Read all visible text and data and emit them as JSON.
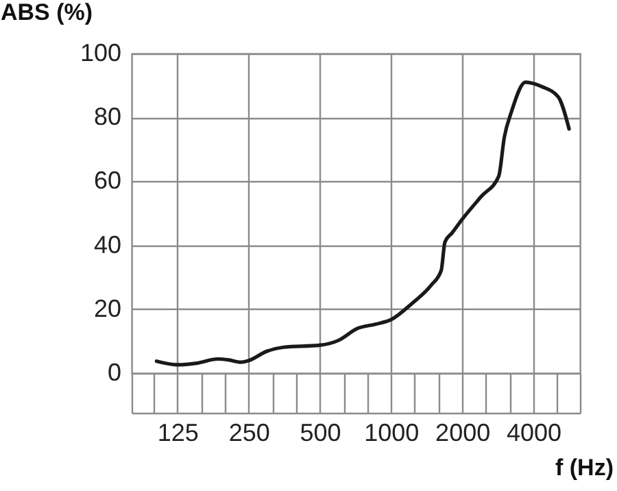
{
  "chart_data": {
    "type": "line",
    "xlabel": "f (Hz)",
    "ylabel": "ABS (%)",
    "log": "x",
    "grid": true,
    "marker": "none",
    "line_style": "solid",
    "series": [
      {
        "color": "#1a1a1a",
        "x": [
          102,
          125,
          151,
          185,
          206,
          232,
          250,
          296,
          353,
          500,
          603,
          719,
          862,
          1000,
          1232,
          1475,
          1631,
          1691,
          1815,
          2000,
          2412,
          2855,
          3017,
          3230,
          3707,
          4350,
          5100,
          5665
        ],
        "values": [
          3.7,
          2.6,
          3.1,
          4.4,
          4.1,
          3.4,
          3.9,
          6.7,
          8.1,
          8.7,
          10.3,
          13.9,
          15.3,
          16.7,
          21.9,
          27.4,
          32.1,
          41,
          43.9,
          48.1,
          55.3,
          61.6,
          73.9,
          81.7,
          91,
          89.6,
          86.4,
          76.4
        ]
      }
    ],
    "xlim": [
      80,
      6300
    ],
    "xticks": [
      {
        "value": 80,
        "label": null
      },
      125,
      250,
      500,
      1000,
      2000,
      4000,
      {
        "value": 6300,
        "label": null
      }
    ],
    "ylim": [
      0,
      100
    ],
    "yticks": [
      0,
      20,
      40,
      60,
      80,
      100
    ]
  }
}
